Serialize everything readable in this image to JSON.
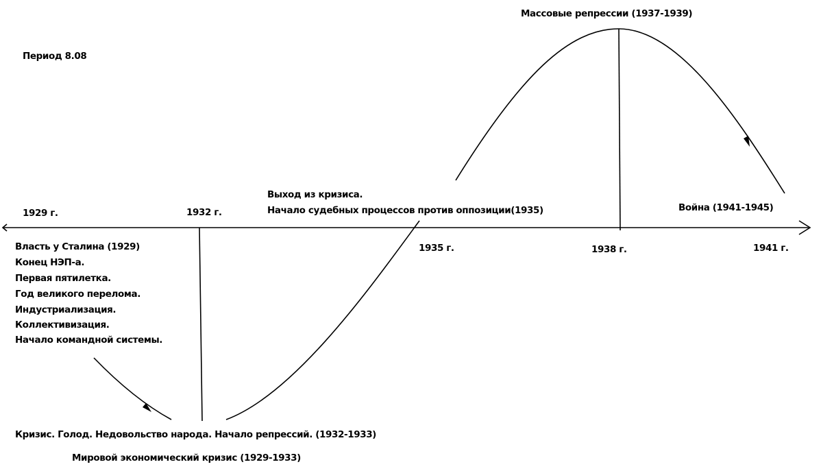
{
  "title": "Период 8.08",
  "peak_label": "Массовые репрессии (1937-1939)",
  "years": [
    "1929 г.",
    "1932 г.",
    "1935 г.",
    "1938 г.",
    "1941 г."
  ],
  "recovery": [
    "Выход из кризиса.",
    "Начало судебных процессов против оппозиции(1935)"
  ],
  "war": "Война (1941-1945)",
  "events_1929": [
    "Власть у Сталина (1929)",
    "Конец НЭП-а.",
    "Первая пятилетка.",
    "Год великого перелома.",
    "Индустриализация.",
    "Коллективизация.",
    "Начало командной системы."
  ],
  "crisis": "Кризис. Голод. Недовольство народа. Начало репрессий. (1932-1933)",
  "world_crisis": "Мировой экономический кризис (1929-1933)"
}
